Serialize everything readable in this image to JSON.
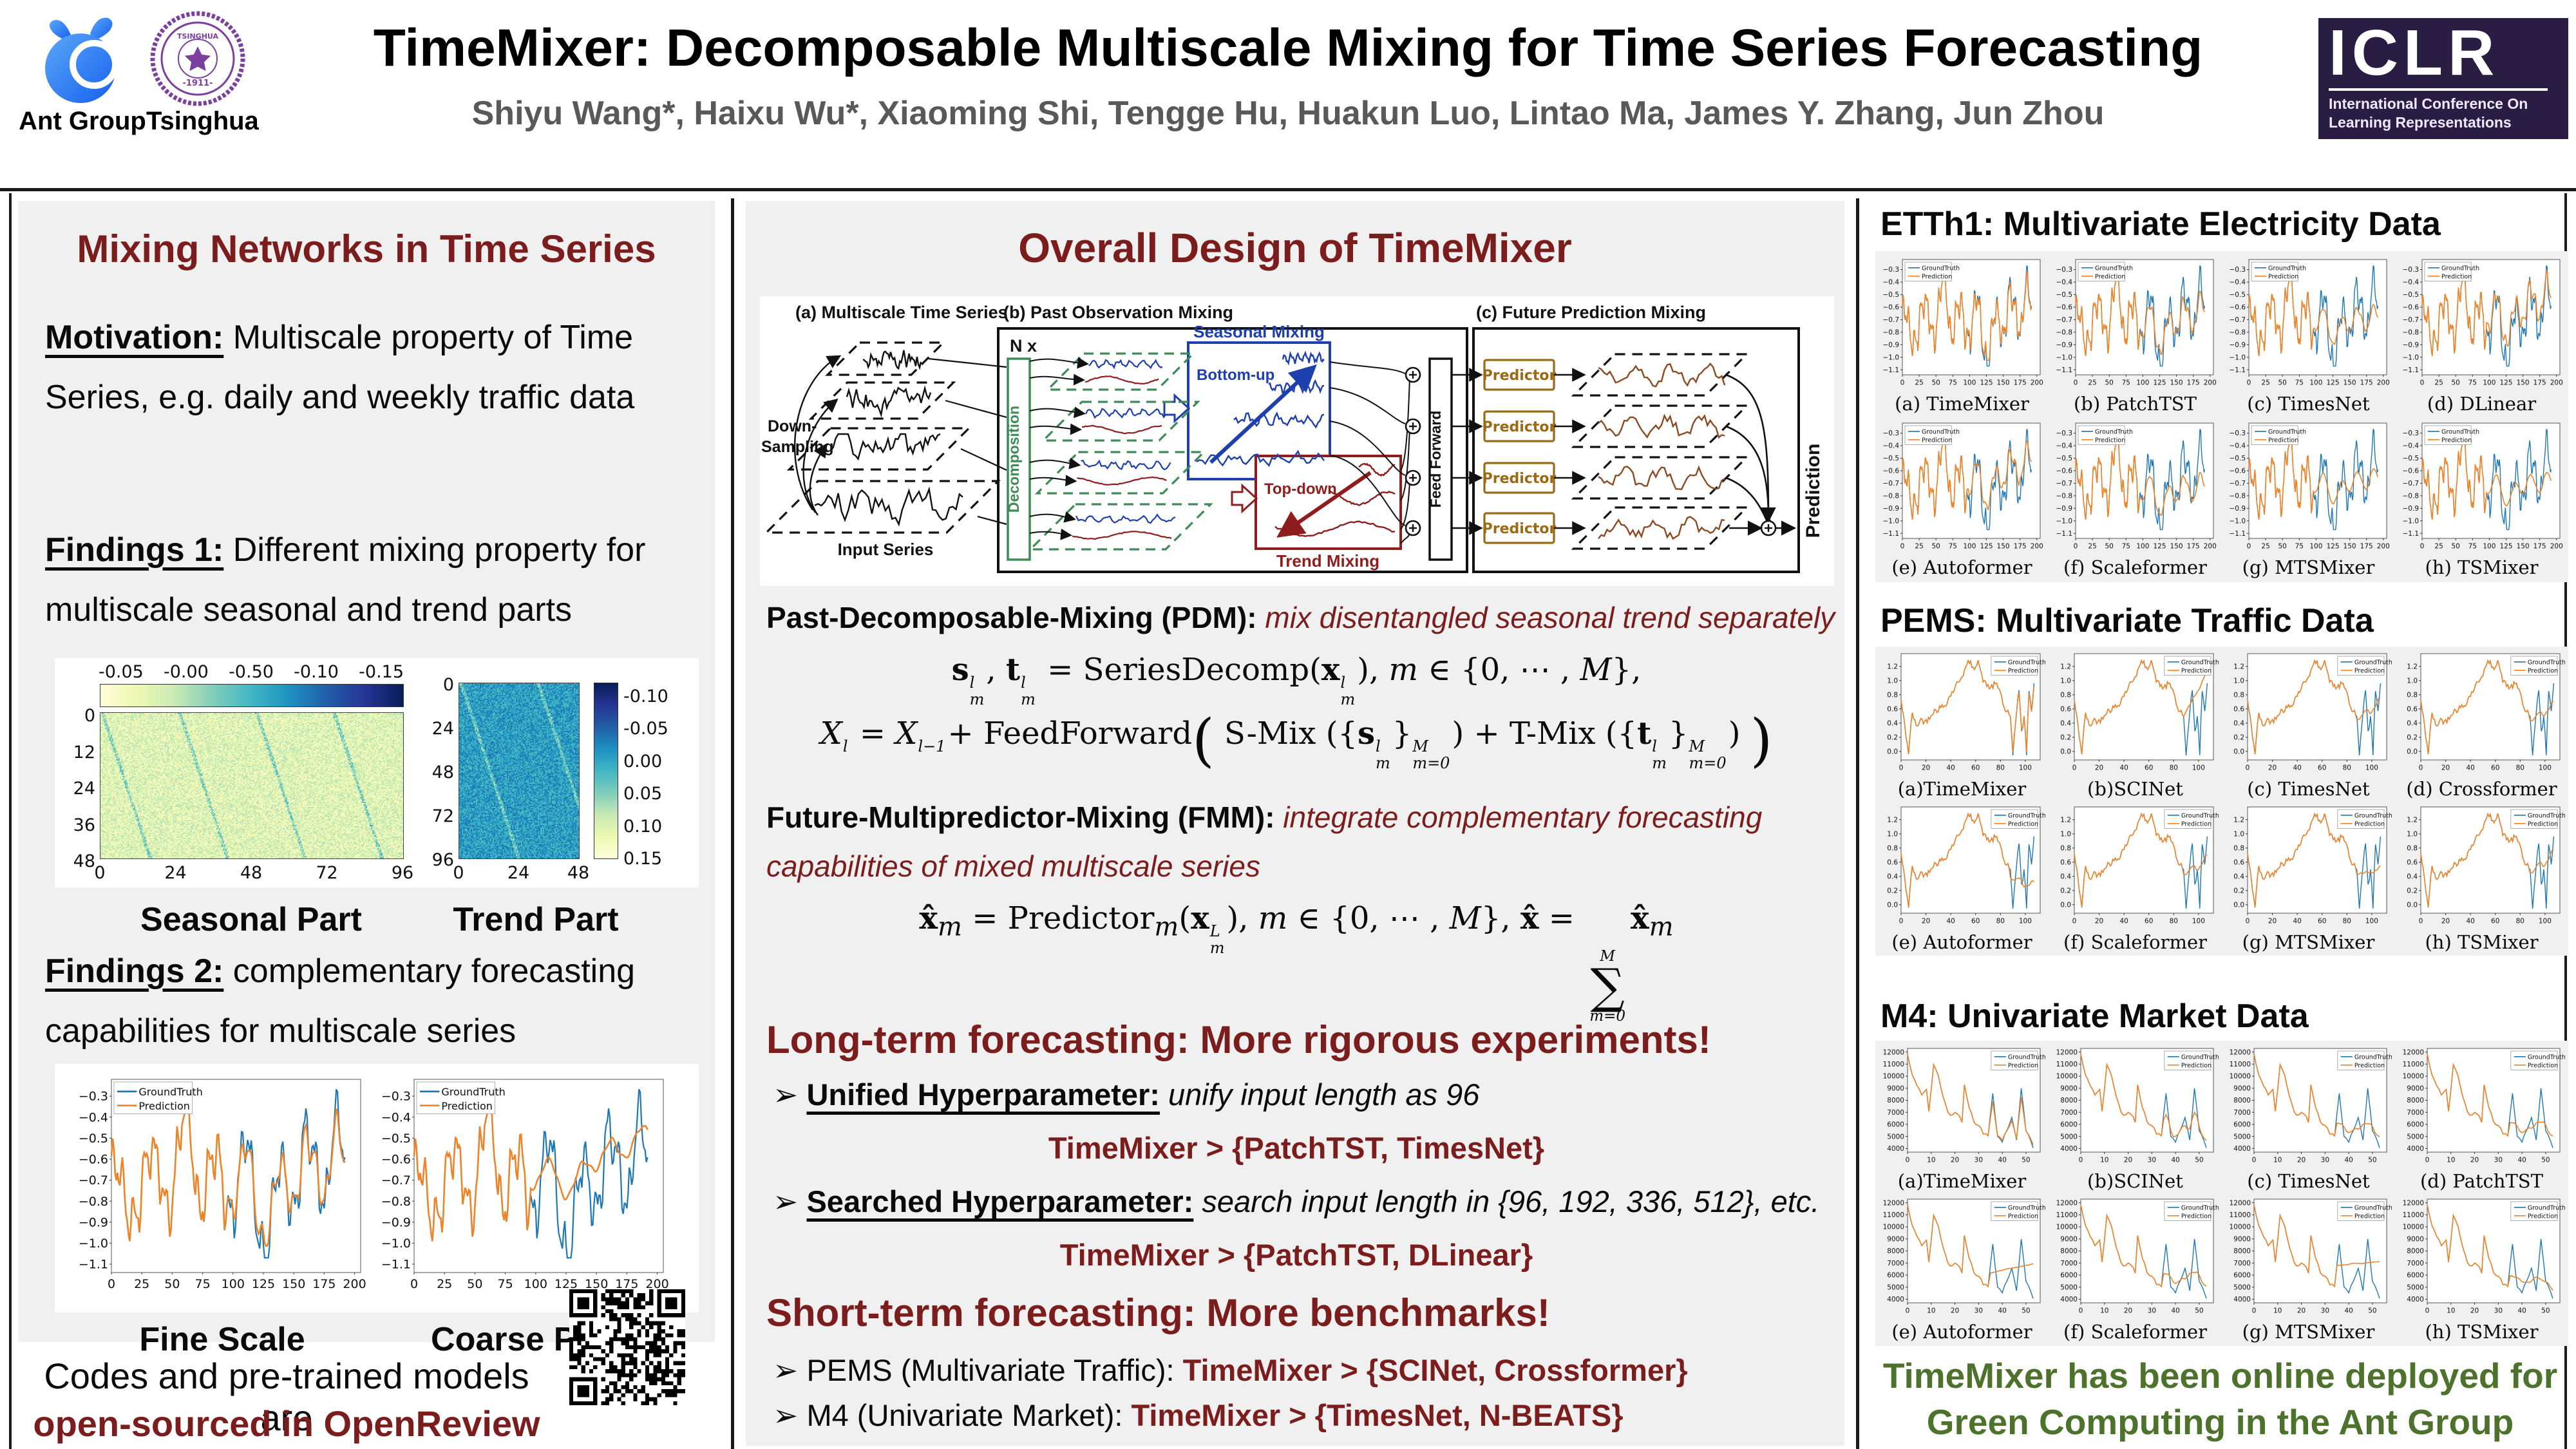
{
  "header": {
    "title": "TimeMixer: Decomposable Multiscale Mixing for Time Series Forecasting",
    "authors": "Shiyu Wang*, Haixu Wu*, Xiaoming Shi, Tengge Hu, Huakun Luo, Lintao Ma, James Y. Zhang, Jun Zhou",
    "ant_label": "Ant Group",
    "tsinghua_label": "Tsinghua",
    "iclr": {
      "acronym": "ICLR",
      "line1": "International Conference On",
      "line2": "Learning Representations"
    }
  },
  "left": {
    "heading": "Mixing Networks in Time Series",
    "motivation_label": "Motivation:",
    "motivation_text": " Multiscale property of Time Series, e.g. daily and weekly traffic data",
    "findings1_label": "Findings 1:",
    "findings1_text": " Different mixing property for multiscale seasonal and trend parts",
    "findings2_label": "Findings 2:",
    "findings2_text": " complementary forecasting capabilities for multiscale series",
    "codes_line1": "Codes and pre-trained models are",
    "codes_line2": "open-sourced in OpenReview"
  },
  "middle": {
    "heading": "Overall Design of TimeMixer",
    "diagram": {
      "a_label": "(a) Multiscale Time Series",
      "b_label": "(b) Past Observation Mixing",
      "c_label": "(c) Future Prediction Mixing",
      "nx": "N x",
      "down1": "Down-",
      "down2": "Sampling",
      "input_series": "Input Series",
      "decomposition": "Decomposition",
      "seasonal_mixing": "Seasonal Mixing",
      "bottom_up": "Bottom-up",
      "top_down": "Top-down",
      "trend_mixing": "Trend Mixing",
      "feed_forward": "Feed Forward",
      "predictor": "Predictor",
      "prediction": "Prediction"
    },
    "pdm_label": "Past-Decomposable-Mixing (PDM):",
    "pdm_text": " mix disentangled seasonal trend separately",
    "formula1_html": "<b>s</b><span class='ss'><span>l</span><span>m</span></span>, <b>t</b><span class='ss'><span>l</span><span>m</span></span> = SeriesDecomp(<b>x</b><span class='ss'><span>l</span><span>m</span></span>), <i>m</i> ∈ {0, ⋯ , <i>M</i>},",
    "formula2_html": "<i>X</i><span class='ss'><span>l</span><span>&nbsp;</span></span> = <i>X</i><span class='ss'><span>l−1</span><span>&nbsp;</span></span>+ FeedForward<span class='bigp'>(</span> S-Mix ({<b>s</b><span class='ss'><span>l</span><span>m</span></span>}<span class='ss'><span>M</span><span>m=0</span></span>) + T-Mix ({<b>t</b><span class='ss'><span>l</span><span>m</span></span>}<span class='ss'><span>M</span><span>m=0</span></span>) <span class='bigp'>)</span>",
    "fmm_label": "Future-Multipredictor-Mixing (FMM):",
    "fmm_text": " integrate complementary forecasting capabilities of mixed multiscale series",
    "formula3_html": "<b>x̂</b><sub><i>m</i></sub> = Predictor<sub><i>m</i></sub>(<b>x</b><span class='ss'><span>L</span><span>m</span></span>), <i>m</i> ∈ {0, ⋯ , <i>M</i>}, <b>x̂</b> = <span class='sigma'><span class='st'>M</span><span class='sm'>∑</span><span class='sb'>m=0</span></span><b>x̂</b><sub><i>m</i></sub>",
    "longterm": {
      "heading": "Long-term forecasting: More rigorous experiments!",
      "arrow": "➢",
      "bullet1_label": "Unified Hyperparameter:",
      "bullet1_text": " unify input length as 96",
      "result1": "TimeMixer > {PatchTST, TimesNet}",
      "bullet2_label": "Searched Hyperparameter:",
      "bullet2_text": " search input length in {96, 192, 336, 512}, etc.",
      "result2": "TimeMixer > {PatchTST, DLinear}"
    },
    "shortterm": {
      "heading": "Short-term forecasting: More benchmarks!",
      "arrow": "➢",
      "bullet1_black": "PEMS (Multivariate Traffic): ",
      "bullet1_red": "TimeMixer > {SCINet, Crossformer}",
      "bullet2_black": "M4 (Univariate Market): ",
      "bullet2_red": "TimeMixer > {TimesNet, N-BEATS}"
    }
  },
  "right": {
    "sections": [
      {
        "heading": "ETTh1: Multivariate Electricity Data"
      },
      {
        "heading": "PEMS: Multivariate Traffic Data"
      },
      {
        "heading": "M4: Univariate Market Data"
      }
    ],
    "deploy_line1": "TimeMixer has been online deployed for",
    "deploy_line2": "Green Computing in the Ant Group"
  },
  "colors": {
    "accent_red": "#7b1d1d",
    "deploy_green": "#4c722c",
    "panel_gray": "#f0f0f0",
    "groundtruth_blue": "#1f77b4",
    "prediction_orange": "#ef8326",
    "diagram_green": "#3d8b57",
    "diagram_blue": "#1e3fae",
    "diagram_red": "#8f1d1d",
    "predictor_gold": "#9a6a15",
    "prediction_brown": "#8a4a22",
    "iclr_purple": "#2a1d44",
    "ant_blue": "#2f7bf6",
    "tsinghua_purple": "#7b3fa0"
  },
  "chart_data": {
    "legend": [
      "GroundTruth",
      "Prediction"
    ],
    "heatmaps": [
      {
        "caption": "Seasonal Part",
        "xticks": [
          0,
          24,
          48,
          72,
          96
        ],
        "yticks": [
          0,
          12,
          24,
          36,
          48
        ],
        "cbar_labels": [
          "-0.05",
          "-0.00",
          "-0.50",
          "-0.10",
          "-0.15"
        ],
        "level": 0.17,
        "streak": "dark"
      },
      {
        "caption": "Trend Part",
        "xticks": [
          0,
          24,
          48
        ],
        "yticks": [
          0,
          24,
          48,
          72,
          96
        ],
        "cbar_labels": [
          "-0.10",
          "-0.05",
          "0.00",
          "0.05",
          "0.10",
          "0.15"
        ],
        "level": 0.58,
        "streak": "light"
      }
    ],
    "etth1_components": {
      "base": -0.72,
      "noise": 0.02,
      "clamp": [
        -1.07,
        -0.26
      ],
      "waves": [
        [
          0.16,
          26.5,
          0.3
        ],
        [
          0.1,
          8.8,
          1.1
        ],
        [
          0.05,
          4.1,
          0.0
        ]
      ],
      "events": [
        [
          0.3,
          63,
          4.5
        ],
        [
          0.12,
          40,
          3
        ],
        [
          -0.2,
          127,
          7
        ],
        [
          0.22,
          158,
          3.5
        ],
        [
          0.36,
          183,
          3.5
        ],
        [
          -0.12,
          10,
          4
        ],
        [
          0.1,
          110,
          3
        ]
      ]
    },
    "pems_points": [
      [
        0,
        0.72
      ],
      [
        3,
        0.35
      ],
      [
        6,
        -0.02
      ],
      [
        9,
        0.55
      ],
      [
        12,
        0.35
      ],
      [
        16,
        0.45
      ],
      [
        20,
        0.42
      ],
      [
        25,
        0.55
      ],
      [
        30,
        0.6
      ],
      [
        35,
        0.65
      ],
      [
        40,
        0.8
      ],
      [
        45,
        0.95
      ],
      [
        50,
        1.1
      ],
      [
        55,
        1.28
      ],
      [
        58,
        1.15
      ],
      [
        62,
        1.3
      ],
      [
        65,
        1.05
      ],
      [
        68,
        0.95
      ],
      [
        72,
        0.9
      ],
      [
        76,
        0.95
      ],
      [
        80,
        0.85
      ],
      [
        83,
        0.6
      ],
      [
        86,
        0.55
      ],
      [
        88,
        0.45
      ],
      [
        90,
        -0.05
      ],
      [
        93,
        0.6
      ],
      [
        95,
        0.88
      ],
      [
        97,
        0.25
      ],
      [
        99,
        0.5
      ],
      [
        101,
        -0.02
      ],
      [
        103,
        0.88
      ],
      [
        105,
        0.55
      ],
      [
        107,
        0.97
      ]
    ],
    "m4_points": [
      [
        0,
        11800
      ],
      [
        2,
        10000
      ],
      [
        4,
        9300
      ],
      [
        6,
        8500
      ],
      [
        8,
        8800
      ],
      [
        9,
        7100
      ],
      [
        11,
        10850
      ],
      [
        13,
        10100
      ],
      [
        15,
        8300
      ],
      [
        17,
        7000
      ],
      [
        19,
        6800
      ],
      [
        21,
        7000
      ],
      [
        23,
        6300
      ],
      [
        24,
        9350
      ],
      [
        26,
        7500
      ],
      [
        28,
        6200
      ],
      [
        30,
        6000
      ],
      [
        32,
        5200
      ],
      [
        34,
        5100
      ],
      [
        36,
        8700
      ],
      [
        38,
        5000
      ],
      [
        40,
        4600
      ],
      [
        42,
        5600
      ],
      [
        44,
        6500
      ],
      [
        46,
        4700
      ],
      [
        48,
        9050
      ],
      [
        50,
        5600
      ],
      [
        52,
        4600
      ],
      [
        53,
        4000
      ]
    ],
    "finding2": {
      "dataset": "etth1",
      "n": 193,
      "horizon": 96,
      "xmax": 205,
      "dec": 1,
      "ylim": [
        -1.14,
        -0.22
      ],
      "yticks": [
        -0.3,
        -0.4,
        -0.5,
        -0.6,
        -0.7,
        -0.8,
        -0.9,
        -1.0,
        -1.1
      ],
      "xticks": [
        0,
        25,
        50,
        75,
        100,
        125,
        150,
        175,
        200
      ],
      "legend_pos": "tl",
      "models": [
        {
          "caption": "Fine Scale",
          "w": 3,
          "damp": 0.85,
          "bias": 0,
          "end": 0
        },
        {
          "caption": "Coarse Part",
          "w": 13,
          "damp": 0.5,
          "bias": 0.02,
          "end": 0.12
        }
      ]
    },
    "grids": [
      {
        "dataset": "etth1",
        "n": 193,
        "horizon": 96,
        "xmax": 205,
        "dec": 1,
        "ml": 36,
        "ylim": [
          -1.14,
          -0.22
        ],
        "yticks": [
          -0.3,
          -0.4,
          -0.5,
          -0.6,
          -0.7,
          -0.8,
          -0.9,
          -1.0,
          -1.1
        ],
        "xticks": [
          0,
          25,
          50,
          75,
          100,
          125,
          150,
          175,
          200
        ],
        "legend_pos": "tl",
        "models": [
          {
            "caption": "(a) TimeMixer",
            "w": 1,
            "damp": 0.88,
            "bias": 0,
            "end": 0
          },
          {
            "caption": "(b) PatchTST",
            "w": 5,
            "damp": 0.72,
            "bias": -0.02,
            "end": 0
          },
          {
            "caption": "(c) TimesNet",
            "w": 7,
            "damp": 0.55,
            "bias": 0,
            "end": -0.05
          },
          {
            "caption": "(d) DLinear",
            "w": 3,
            "damp": 0.75,
            "bias": 0.05,
            "end": 0.05
          },
          {
            "caption": "(e) Autoformer",
            "w": 5,
            "damp": 0.72,
            "bias": 0.03,
            "end": 0.06
          },
          {
            "caption": "(f) Scaleformer",
            "w": 7,
            "damp": 0.6,
            "bias": -0.04,
            "end": -0.06
          },
          {
            "caption": "(g) MTSMixer",
            "w": 9,
            "damp": 0.5,
            "bias": 0,
            "end": -0.02
          },
          {
            "caption": "(h) TSMixer",
            "w": 9,
            "damp": 0.5,
            "bias": -0.01,
            "end": -0.04
          }
        ]
      },
      {
        "dataset": "pems",
        "n": 108,
        "horizon": 88,
        "xmax": 112,
        "dec": 1,
        "ml": 34,
        "ylim": [
          -0.12,
          1.38
        ],
        "yticks": [
          0.0,
          0.2,
          0.4,
          0.6,
          0.8,
          1.0,
          1.2
        ],
        "xticks": [
          0,
          20,
          40,
          60,
          80,
          100
        ],
        "legend_pos": "tr",
        "models": [
          {
            "caption": "(a)TimeMixer",
            "w": 1,
            "damp": 0.92,
            "bias": 0,
            "end": 0
          },
          {
            "caption": "(b)SCINet",
            "w": 9,
            "damp": 0.35,
            "bias": 0.05,
            "end": 0.55
          },
          {
            "caption": "(c) TimesNet",
            "w": 7,
            "damp": 0.4,
            "bias": 0.02,
            "end": 0.15
          },
          {
            "caption": "(d) Crossformer",
            "w": 7,
            "damp": 0.38,
            "bias": 0,
            "end": 0.12
          },
          {
            "caption": "(e) Autoformer",
            "w": 7,
            "damp": 0.4,
            "bias": -0.05,
            "end": -0.22
          },
          {
            "caption": "(f) Scaleformer",
            "w": 7,
            "damp": 0.42,
            "bias": 0,
            "end": 0.1
          },
          {
            "caption": "(g) MTSMixer",
            "w": 9,
            "damp": 0.32,
            "bias": -0.02,
            "end": 0
          },
          {
            "caption": "(h) TSMixer",
            "w": 7,
            "damp": 0.42,
            "bias": 0.02,
            "end": 0.16
          }
        ]
      },
      {
        "dataset": "m4",
        "n": 54,
        "horizon": 35,
        "xmax": 56,
        "dec": 0,
        "ml": 44,
        "ylim": [
          3700,
          12300
        ],
        "yticks": [
          4000,
          5000,
          6000,
          7000,
          8000,
          9000,
          10000,
          11000,
          12000
        ],
        "xticks": [
          0,
          10,
          20,
          30,
          40,
          50
        ],
        "legend_pos": "tr",
        "models": [
          {
            "caption": "(a)TimeMixer",
            "w": 1,
            "damp": 0.8,
            "bias": -120,
            "end": 0
          },
          {
            "caption": "(b)SCINet",
            "w": 3,
            "damp": 0.7,
            "bias": -150,
            "end": 0
          },
          {
            "caption": "(c) TimesNet",
            "w": 5,
            "damp": 0.5,
            "bias": -100,
            "end": -200
          },
          {
            "caption": "(d) PatchTST",
            "w": 5,
            "damp": 0.55,
            "bias": -80,
            "end": -100
          },
          {
            "caption": "(e) Autoformer",
            "w": 13,
            "damp": 0.22,
            "bias": 300,
            "end": 700
          },
          {
            "caption": "(f) Scaleformer",
            "w": 5,
            "damp": 0.55,
            "bias": -120,
            "end": 0
          },
          {
            "caption": "(g) MTSMixer",
            "w": 15,
            "damp": 0.15,
            "bias": 900,
            "end": 300
          },
          {
            "caption": "(h) TSMixer",
            "w": 7,
            "damp": 0.5,
            "bias": -50,
            "end": -600
          }
        ]
      }
    ]
  }
}
